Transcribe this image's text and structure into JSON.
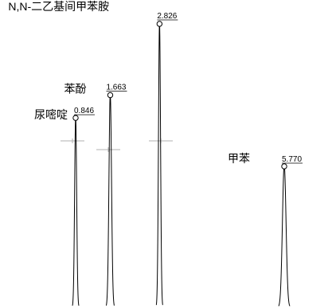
{
  "chart_data": {
    "type": "line",
    "title": "",
    "xlabel": "",
    "ylabel": "",
    "xlim": [
      0.55,
      6.35
    ],
    "ylim": [
      0,
      1.0
    ],
    "peaks": [
      {
        "compound": "尿嘧啶",
        "retention_time": 0.846,
        "rt_label": "0.846",
        "height": 0.67
      },
      {
        "compound": "苯酚",
        "retention_time": 1.663,
        "rt_label": "1.663",
        "height": 0.75
      },
      {
        "compound": "N,N-二乙基间甲苯胺",
        "retention_time": 2.826,
        "rt_label": "2.826",
        "height": 1.0
      },
      {
        "compound": "甲苯",
        "retention_time": 5.77,
        "rt_label": "5.770",
        "height": 0.5
      }
    ],
    "cursor_markers": [
      {
        "retention_time": 0.86
      },
      {
        "retention_time": 1.53
      },
      {
        "retention_time": 2.86
      }
    ]
  }
}
